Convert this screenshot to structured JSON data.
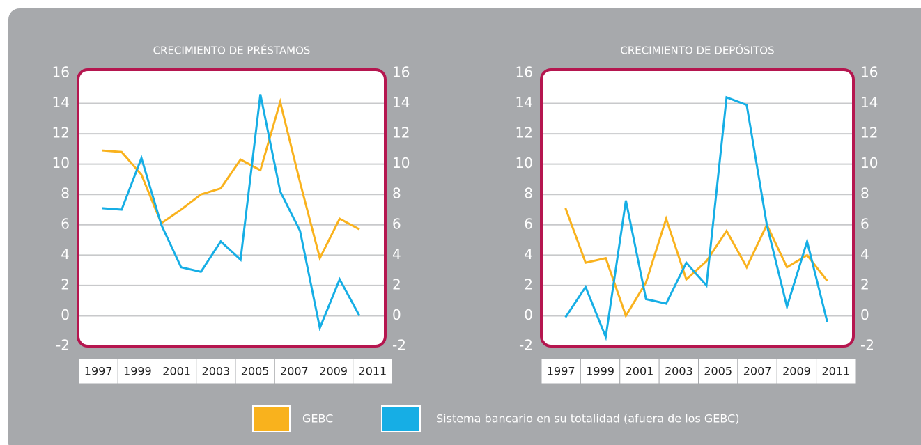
{
  "chart_data": [
    {
      "type": "line",
      "title": "CRECIMIENTO DE PRÉSTAMOS",
      "x": [
        1997,
        1998,
        1999,
        2000,
        2001,
        2002,
        2003,
        2004,
        2005,
        2006,
        2007,
        2008,
        2009,
        2010
      ],
      "xlim": [
        1995.8,
        2011.3
      ],
      "xticks": [
        1997,
        1999,
        2001,
        2003,
        2005,
        2007,
        2009,
        2011
      ],
      "series": [
        {
          "name": "GEBC",
          "color": "#f9b21d",
          "values": [
            10.9,
            10.8,
            9.3,
            6.1,
            7.0,
            8.0,
            8.4,
            10.3,
            9.6,
            14.1,
            8.8,
            3.8,
            6.4,
            5.7
          ]
        },
        {
          "name": "Sistema bancario en su totalidad (afuera de los GEBC)",
          "color": "#16aee5",
          "values": [
            7.1,
            7.0,
            10.4,
            6.0,
            3.2,
            2.9,
            4.9,
            3.7,
            14.6,
            8.2,
            5.6,
            -0.8,
            2.4,
            0.0
          ]
        }
      ],
      "ylim": [
        -2,
        16
      ],
      "yticks": [
        -2,
        0,
        2,
        4,
        6,
        8,
        10,
        12,
        14,
        16
      ],
      "y2lim": [
        -2,
        16
      ],
      "y2ticks": [
        -2,
        0,
        2,
        4,
        6,
        8,
        10,
        12,
        14,
        16
      ],
      "grid": true
    },
    {
      "type": "line",
      "title": "CRECIMIENTO DE DEPÓSITOS",
      "x": [
        1997,
        1998,
        1999,
        2000,
        2001,
        2002,
        2003,
        2004,
        2005,
        2006,
        2007,
        2008,
        2009,
        2010
      ],
      "xlim": [
        1995.8,
        2011.3
      ],
      "xticks": [
        1997,
        1999,
        2001,
        2003,
        2005,
        2007,
        2009,
        2011
      ],
      "series": [
        {
          "color": "#f9b21d",
          "values": [
            7.1,
            3.5,
            3.8,
            0.0,
            2.2,
            6.4,
            2.4,
            3.6,
            5.6,
            3.2,
            6.0,
            3.2,
            4.0,
            2.3
          ]
        },
        {
          "color": "#16aee5",
          "values": [
            -0.1,
            1.9,
            -1.4,
            7.6,
            1.1,
            0.8,
            3.5,
            2.0,
            14.4,
            13.9,
            6.0,
            0.6,
            4.9,
            -0.4
          ]
        }
      ],
      "ylim": [
        -2,
        16
      ],
      "yticks": [
        -2,
        0,
        2,
        4,
        6,
        8,
        10,
        12,
        14,
        16
      ],
      "y2lim": [
        -2,
        16
      ],
      "y2ticks": [
        -2,
        0,
        2,
        4,
        6,
        8,
        10,
        12,
        14,
        16
      ],
      "grid": true
    }
  ]
}
